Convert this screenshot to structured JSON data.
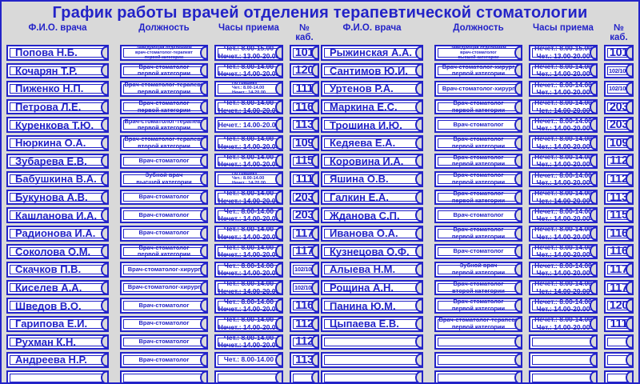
{
  "page": {
    "title": "График работы врачей отделения терапевтической стоматологии",
    "accent_color": "#2323c8",
    "background_color": "#d9d9d9",
    "plate_color": "#ffffff"
  },
  "columns": [
    "Ф.И.О. врача",
    "Должность",
    "Часы приема",
    "№ каб."
  ],
  "left": {
    "rows": [
      {
        "name": "Попова Н.Б.",
        "position": [
          "Заведующая отделением",
          "врач-стоматолог-терапевт",
          "первой категории"
        ],
        "hours": [
          "Чет.: 8.00-15.00",
          "Нечет.: 13.00-20.00"
        ],
        "cab": "101"
      },
      {
        "name": "Кочарян Т.Р.",
        "position": [
          "Врач-стоматолог",
          "первой категории"
        ],
        "hours": [
          "Чет.: 8.00-14.00",
          "Нечет.: 14.00-20.00"
        ],
        "cab": "120"
      },
      {
        "name": "Пиженко Н.П.",
        "position": [
          "Врач-стоматолог-терапевт",
          "первой категории"
        ],
        "hours": [
          "По графику",
          "Чет.: 8.00-14.00",
          "Нечет.: 14-20.00"
        ],
        "cab": "111"
      },
      {
        "name": "Петрова Л.Е.",
        "position": [
          "Врач-стоматолог",
          "первой категории"
        ],
        "hours": [
          "Чет.: 8.00-14.00",
          "Нечет.: 14.00-20.00"
        ],
        "cab": "116"
      },
      {
        "name": "Куренкова Т.Ю.",
        "position": [
          "Врач-стоматолог-терапевт",
          "первой категории"
        ],
        "hours": [
          "Нечет.: 14.00-20.00"
        ],
        "cab": "113"
      },
      {
        "name": "Нюркина О.А.",
        "position": [
          "Врач-стоматолог-терапевт",
          "второй категории"
        ],
        "hours": [
          "Чет.: 8.00-14.00",
          "Нечет.: 14.00-20.00"
        ],
        "cab": "109"
      },
      {
        "name": "Зубарева Е.В.",
        "position": [
          "Врач-стоматолог"
        ],
        "hours": [
          "Чет.: 8.00-14.00",
          "Нечет.: 14.00-20.00"
        ],
        "cab": "115"
      },
      {
        "name": "Бабушкина В.А.",
        "position": [
          "Зубной врач",
          "высшей категории"
        ],
        "hours": [
          "По графику",
          "Чет.: 8.00-14.00",
          "Нечет.: 14-20.00"
        ],
        "cab": "111"
      },
      {
        "name": "Букунова А.В.",
        "position": [
          "Врач-стоматолог"
        ],
        "hours": [
          "Чет.: 8.00-14.00",
          "Нечет.: 14.00-20.00"
        ],
        "cab": "203"
      },
      {
        "name": "Кашланова И.А.",
        "position": [
          "Врач-стоматолог"
        ],
        "hours": [
          "Чет.: 8.00-14.00",
          "Нечет.: 14.00-20.00"
        ],
        "cab": "203"
      },
      {
        "name": "Радионова И.А.",
        "position": [
          "Врач-стоматолог"
        ],
        "hours": [
          "Чет.: 8.00-14.00",
          "Нечет.: 14.00-20.00"
        ],
        "cab": "117"
      },
      {
        "name": "Соколова О.М.",
        "position": [
          "Врач-стоматолог",
          "первой категории"
        ],
        "hours": [
          "Чет.: 8.00-14.00",
          "Нечет.: 14.00-20.00"
        ],
        "cab": "117"
      },
      {
        "name": "Скачков П.В.",
        "position": [
          "Врач-стоматолог-хирург"
        ],
        "hours": [
          "Чет.: 8.00-14.00",
          "Нечет.: 14.00-20.00"
        ],
        "cab": "102/103"
      },
      {
        "name": "Киселев А.А.",
        "position": [
          "Врач-стоматолог-хирург"
        ],
        "hours": [
          "Чет.: 8.00-14.00",
          "Нечет.: 14.00-20.00"
        ],
        "cab": "102/103"
      },
      {
        "name": "Шведов В.О.",
        "position": [
          "Врач-стоматолог"
        ],
        "hours": [
          "Чет.: 8.00-14.00",
          "Нечет.: 14.00-20.00"
        ],
        "cab": "116"
      },
      {
        "name": "Гарипова Е.И.",
        "position": [
          "Врач-стоматолог"
        ],
        "hours": [
          "Чет.: 8.00-14.00",
          "Нечет.: 14.00-20.00"
        ],
        "cab": "112"
      },
      {
        "name": "Рухман К.Н.",
        "position": [
          "Врач-стоматолог"
        ],
        "hours": [
          "Чет.: 8.00-14.00",
          "Нечет.: 14.00-20.00"
        ],
        "cab": "112"
      },
      {
        "name": "Андреева Н.Р.",
        "position": [
          "Врач-стоматолог"
        ],
        "hours": [
          "Чет.: 8.00-14.00"
        ],
        "cab": "113"
      },
      {
        "name": "",
        "position": [],
        "hours": [],
        "cab": ""
      }
    ]
  },
  "right": {
    "rows": [
      {
        "name": "Рыжинская А.А.",
        "position": [
          "Заведующая отделением",
          "врач-стоматолог",
          "высшей категории"
        ],
        "hours": [
          "Нечет.: 8.00-15.00",
          "Чет.: 13.00-20.00"
        ],
        "cab": "101"
      },
      {
        "name": "Сантимов Ю.И.",
        "position": [
          "Врач-стоматолог-хирург",
          "первой категории"
        ],
        "hours": [
          "Нечет.: 8.00-14.00",
          "Чет.: 14.00-20.00"
        ],
        "cab": "102/103"
      },
      {
        "name": "Уртенов Р.А.",
        "position": [
          "Врач-стоматолог-хирург"
        ],
        "hours": [
          "Нечет.: 8.00-14.00",
          "Чет.: 14.00-20.00"
        ],
        "cab": "102/103"
      },
      {
        "name": "Маркина Е.С.",
        "position": [
          "Врач-стоматолог",
          "первой категории"
        ],
        "hours": [
          "Нечет.: 8.00-14.00",
          "Чет.: 14.00-20.00"
        ],
        "cab": "203"
      },
      {
        "name": "Трошина И.Ю.",
        "position": [
          "Врач-стоматолог"
        ],
        "hours": [
          "Нечет.: 8.00-14.00",
          "Чет.: 14.00-20.00"
        ],
        "cab": "203"
      },
      {
        "name": "Кедяева Е.А.",
        "position": [
          "Врач-стоматолог",
          "первой категории"
        ],
        "hours": [
          "Нечет.: 8.00-14.00",
          "Чет.: 14.00-20.00"
        ],
        "cab": "109"
      },
      {
        "name": "Коровина И.А.",
        "position": [
          "Врач-стоматолог",
          "первой категории"
        ],
        "hours": [
          "Нечет.: 8.00-14.00",
          "Чет.: 14.00-20.00"
        ],
        "cab": "112"
      },
      {
        "name": "Яшина О.В.",
        "position": [
          "Врач-стоматолог",
          "первой категории"
        ],
        "hours": [
          "Нечет.: 8.00-14.00",
          "Чет.: 14.00-20.00"
        ],
        "cab": "112"
      },
      {
        "name": "Галкин Е.А.",
        "position": [
          "Врач-стоматолог",
          "первой категории"
        ],
        "hours": [
          "Нечет.: 8.00-14.00",
          "Чет.: 14.00-20.00"
        ],
        "cab": "113"
      },
      {
        "name": "Жданова С.П.",
        "position": [
          "Врач-стоматолог"
        ],
        "hours": [
          "Нечет.: 8.00-14.00",
          "Чет.: 14.00-20.00"
        ],
        "cab": "115"
      },
      {
        "name": "Иванова О.А.",
        "position": [
          "Врач-стоматолог",
          "первой категории"
        ],
        "hours": [
          "Нечет.: 8.00-14.00",
          "Чет.: 14.00-20.00"
        ],
        "cab": "116"
      },
      {
        "name": "Кузнецова О.Ф.",
        "position": [
          "Врач-стоматолог"
        ],
        "hours": [
          "Нечет.: 8.00-14.00",
          "Чет.: 14.00-20.00"
        ],
        "cab": "116"
      },
      {
        "name": "Алыева Н.М.",
        "position": [
          "Зубной врач",
          "первой категории"
        ],
        "hours": [
          "Нечет.: 8.00-14.00",
          "Чет.: 14.00-20.00"
        ],
        "cab": "117"
      },
      {
        "name": "Рощина А.Н.",
        "position": [
          "Врач-стоматолог",
          "второй категории"
        ],
        "hours": [
          "Нечет.: 8.00-14.00",
          "Чет.: 14.00-20.00"
        ],
        "cab": "117"
      },
      {
        "name": "Панина Ю.М.",
        "position": [
          "Врач-стоматолог",
          "первой категории"
        ],
        "hours": [
          "Нечет.: 8.00-14.00",
          "Чет.: 14.00-20.00"
        ],
        "cab": "120"
      },
      {
        "name": "Цыпаева Е.В.",
        "position": [
          "Врач-стоматолог-терапевт",
          "первой категории"
        ],
        "hours": [
          "Нечет.: 8.00-14.00",
          "Чет.: 14.00-20.00"
        ],
        "cab": "111"
      },
      {
        "name": "",
        "position": [],
        "hours": [],
        "cab": ""
      },
      {
        "name": "",
        "position": [],
        "hours": [],
        "cab": ""
      },
      {
        "name": "",
        "position": [],
        "hours": [],
        "cab": ""
      }
    ]
  }
}
